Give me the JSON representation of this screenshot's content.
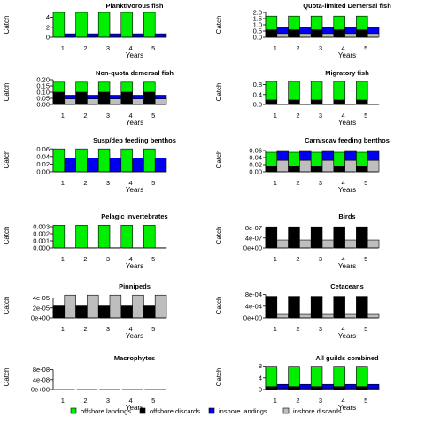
{
  "legend": [
    {
      "label": "offshore landings",
      "color": "#00ee00"
    },
    {
      "label": "offshore discards",
      "color": "#000000"
    },
    {
      "label": "inshore landings",
      "color": "#0000ee"
    },
    {
      "label": "inshore discards",
      "color": "#bebebe"
    }
  ],
  "chart_data": [
    {
      "type": "bar",
      "title": "Planktivorous fish",
      "xlabel": "Years",
      "ylabel": "Catch",
      "categories": [
        "1",
        "2",
        "3",
        "4",
        "5"
      ],
      "ylim": [
        0,
        5
      ],
      "yticks": [
        "0",
        "2",
        "4"
      ],
      "yticks_values": [
        0,
        2,
        4
      ],
      "series": [
        {
          "name": "offshore landings",
          "values": [
            5,
            5,
            5,
            5,
            5
          ],
          "stacked_with": []
        },
        {
          "name": "inshore landings",
          "values": [
            0.7,
            0.7,
            0.7,
            0.7,
            0.7
          ]
        }
      ]
    },
    {
      "type": "bar",
      "title": "Quota-limited Demersal fish",
      "xlabel": "Years",
      "ylabel": "Catch",
      "categories": [
        "1",
        "2",
        "3",
        "4",
        "5"
      ],
      "ylim": [
        0,
        2.0
      ],
      "yticks": [
        "0.0",
        "0.5",
        "1.0",
        "1.5",
        "2.0"
      ],
      "yticks_values": [
        0,
        0.5,
        1,
        1.5,
        2
      ],
      "series": [
        {
          "name": "offshore landings",
          "values": [
            1.1,
            1.1,
            1.1,
            1.1,
            1.1
          ]
        },
        {
          "name": "offshore discards",
          "values": [
            0.6,
            0.6,
            0.6,
            0.6,
            0.6
          ]
        },
        {
          "name": "inshore landings",
          "values": [
            0.5,
            0.5,
            0.5,
            0.5,
            0.5
          ]
        },
        {
          "name": "inshore discards",
          "values": [
            0.3,
            0.3,
            0.3,
            0.3,
            0.3
          ]
        }
      ]
    },
    {
      "type": "bar",
      "title": "Non-quota demersal fish",
      "xlabel": "Years",
      "ylabel": "Catch",
      "categories": [
        "1",
        "2",
        "3",
        "4",
        "5"
      ],
      "ylim": [
        0,
        0.2
      ],
      "yticks": [
        "0.00",
        "0.05",
        "0.10",
        "0.15",
        "0.20"
      ],
      "yticks_values": [
        0,
        0.05,
        0.1,
        0.15,
        0.2
      ],
      "series": [
        {
          "name": "offshore landings",
          "values": [
            0.08,
            0.08,
            0.08,
            0.08,
            0.08
          ]
        },
        {
          "name": "offshore discards",
          "values": [
            0.1,
            0.1,
            0.1,
            0.1,
            0.1
          ]
        },
        {
          "name": "inshore landings",
          "values": [
            0.03,
            0.03,
            0.03,
            0.03,
            0.03
          ]
        },
        {
          "name": "inshore discards",
          "values": [
            0.045,
            0.045,
            0.045,
            0.045,
            0.045
          ]
        }
      ]
    },
    {
      "type": "bar",
      "title": "Migratory fish",
      "xlabel": "Years",
      "ylabel": "Catch",
      "categories": [
        "1",
        "2",
        "3",
        "4",
        "5"
      ],
      "ylim": [
        0,
        1.0
      ],
      "yticks": [
        "0.0",
        "0.4",
        "0.8"
      ],
      "yticks_values": [
        0,
        0.4,
        0.8
      ],
      "series": [
        {
          "name": "offshore landings",
          "values": [
            0.75,
            0.75,
            0.75,
            0.75,
            0.75
          ]
        },
        {
          "name": "offshore discards",
          "values": [
            0.18,
            0.18,
            0.18,
            0.18,
            0.18
          ]
        },
        {
          "name": "inshore landings",
          "values": [
            0.005,
            0.005,
            0.005,
            0.005,
            0.005
          ]
        },
        {
          "name": "inshore discards",
          "values": [
            0.005,
            0.005,
            0.005,
            0.005,
            0.005
          ]
        }
      ]
    },
    {
      "type": "bar",
      "title": "Susp/dep feeding benthos",
      "xlabel": "Years",
      "ylabel": "Catch",
      "categories": [
        "1",
        "2",
        "3",
        "4",
        "5"
      ],
      "ylim": [
        0,
        0.065
      ],
      "yticks": [
        "0.00",
        "0.02",
        "0.04",
        "0.06"
      ],
      "yticks_values": [
        0,
        0.02,
        0.04,
        0.06
      ],
      "series": [
        {
          "name": "offshore landings",
          "values": [
            0.06,
            0.06,
            0.06,
            0.06,
            0.06
          ]
        },
        {
          "name": "inshore landings",
          "values": [
            0.036,
            0.036,
            0.036,
            0.036,
            0.036
          ]
        }
      ]
    },
    {
      "type": "bar",
      "title": "Carn/scav feeding benthos",
      "xlabel": "Years",
      "ylabel": "Catch",
      "categories": [
        "1",
        "2",
        "3",
        "4",
        "5"
      ],
      "ylim": [
        0,
        0.07
      ],
      "yticks": [
        "0.00",
        "0.02",
        "0.04",
        "0.06"
      ],
      "yticks_values": [
        0,
        0.02,
        0.04,
        0.06
      ],
      "series": [
        {
          "name": "offshore landings",
          "values": [
            0.04,
            0.04,
            0.04,
            0.04,
            0.04
          ]
        },
        {
          "name": "offshore discards",
          "values": [
            0.015,
            0.015,
            0.015,
            0.015,
            0.015
          ]
        },
        {
          "name": "inshore landings",
          "values": [
            0.028,
            0.028,
            0.028,
            0.028,
            0.028
          ]
        },
        {
          "name": "inshore discards",
          "values": [
            0.032,
            0.032,
            0.032,
            0.032,
            0.032
          ]
        }
      ]
    },
    {
      "type": "bar",
      "title": "Pelagic invertebrates",
      "xlabel": "Years",
      "ylabel": "Catch",
      "categories": [
        "1",
        "2",
        "3",
        "4",
        "5"
      ],
      "ylim": [
        0,
        0.0035
      ],
      "yticks": [
        "0.000",
        "0.001",
        "0.002",
        "0.003"
      ],
      "yticks_values": [
        0,
        0.001,
        0.002,
        0.003
      ],
      "series": [
        {
          "name": "offshore landings",
          "values": [
            0.0032,
            0.0032,
            0.0032,
            0.0032,
            0.0032
          ]
        },
        {
          "name": "inshore landings",
          "values": [
            3e-05,
            3e-05,
            3e-05,
            3e-05,
            3e-05
          ]
        }
      ]
    },
    {
      "type": "bar",
      "title": "Birds",
      "xlabel": "Years",
      "ylabel": "Catch",
      "categories": [
        "1",
        "2",
        "3",
        "4",
        "5"
      ],
      "ylim": [
        0,
        1e-06
      ],
      "yticks": [
        "0e+00",
        "4e-07",
        "8e-07"
      ],
      "yticks_values": [
        0,
        4e-07,
        8e-07
      ],
      "series": [
        {
          "name": "offshore discards",
          "values": [
            8.5e-07,
            8.5e-07,
            8.5e-07,
            8.5e-07,
            8.5e-07
          ]
        },
        {
          "name": "inshore discards",
          "values": [
            3.2e-07,
            3.2e-07,
            3.2e-07,
            3.2e-07,
            3.2e-07
          ]
        }
      ]
    },
    {
      "type": "bar",
      "title": "Pinnipeds",
      "xlabel": "Years",
      "ylabel": "Catch",
      "categories": [
        "1",
        "2",
        "3",
        "4",
        "5"
      ],
      "ylim": [
        0,
        5e-05
      ],
      "yticks": [
        "0e+00",
        "2e-05",
        "4e-05"
      ],
      "yticks_values": [
        0,
        2e-05,
        4e-05
      ],
      "series": [
        {
          "name": "offshore discards",
          "values": [
            2.4e-05,
            2.4e-05,
            2.4e-05,
            2.4e-05,
            2.4e-05
          ]
        },
        {
          "name": "inshore discards",
          "values": [
            4.6e-05,
            4.6e-05,
            4.6e-05,
            4.6e-05,
            4.6e-05
          ]
        }
      ]
    },
    {
      "type": "bar",
      "title": "Cetaceans",
      "xlabel": "Years",
      "ylabel": "Catch",
      "categories": [
        "1",
        "2",
        "3",
        "4",
        "5"
      ],
      "ylim": [
        0,
        0.00085
      ],
      "yticks": [
        "0e+00",
        "4e-04",
        "8e-04"
      ],
      "yticks_values": [
        0,
        0.0004,
        0.0008
      ],
      "series": [
        {
          "name": "offshore landings",
          "values": [
            2e-05,
            2e-05,
            2e-05,
            2e-05,
            2e-05
          ]
        },
        {
          "name": "offshore discards",
          "values": [
            0.00072,
            0.00072,
            0.00072,
            0.00072,
            0.00072
          ]
        },
        {
          "name": "inshore discards",
          "values": [
            0.00012,
            0.00012,
            0.00012,
            0.00012,
            0.00012
          ]
        }
      ]
    },
    {
      "type": "bar",
      "title": "Macrophytes",
      "xlabel": "Years",
      "ylabel": "Catch",
      "categories": [
        "1",
        "2",
        "3",
        "4",
        "5"
      ],
      "ylim": [
        0,
        1e-07
      ],
      "yticks": [
        "0e+00",
        "4e-08",
        "8e-08"
      ],
      "yticks_values": [
        0,
        4e-08,
        8e-08
      ],
      "series": [
        {
          "name": "offshore landings",
          "values": [
            0,
            0,
            0,
            0,
            0
          ]
        },
        {
          "name": "inshore landings",
          "values": [
            0,
            0,
            0,
            0,
            0
          ]
        }
      ]
    },
    {
      "type": "bar",
      "title": "All guilds combined",
      "xlabel": "Years",
      "ylabel": "Catch",
      "categories": [
        "1",
        "2",
        "3",
        "4",
        "5"
      ],
      "ylim": [
        0,
        8.5
      ],
      "yticks": [
        "0",
        "4",
        "8"
      ],
      "yticks_values": [
        0,
        4,
        8
      ],
      "series": [
        {
          "name": "offshore landings",
          "values": [
            7.0,
            7.0,
            7.0,
            7.0,
            7.0
          ]
        },
        {
          "name": "offshore discards",
          "values": [
            1.0,
            1.0,
            1.0,
            1.0,
            1.0
          ]
        },
        {
          "name": "inshore landings",
          "values": [
            1.4,
            1.4,
            1.4,
            1.4,
            1.4
          ]
        },
        {
          "name": "inshore discards",
          "values": [
            0.35,
            0.35,
            0.35,
            0.35,
            0.35
          ]
        }
      ]
    }
  ]
}
